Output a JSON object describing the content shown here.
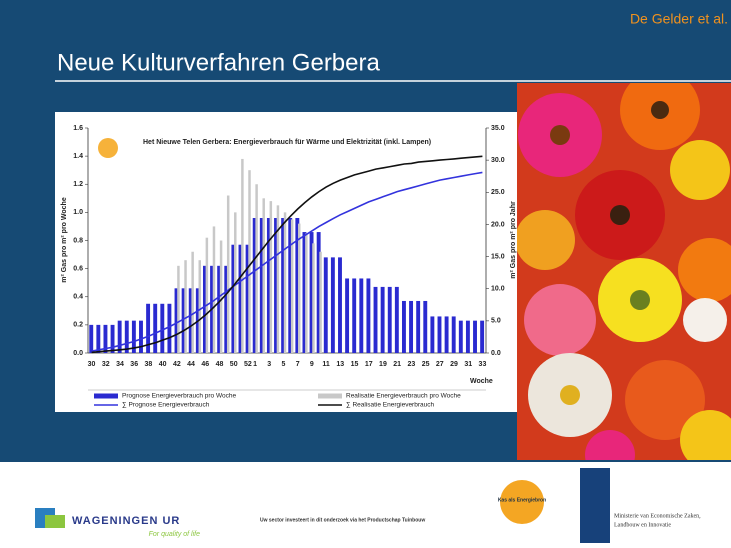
{
  "slide": {
    "title": "Neue Kulturverfahren Gerbera",
    "author": "De Gelder et al."
  },
  "footer": {
    "wageningen": "WAGENINGEN UR",
    "wageningen_tagline": "For quality of life",
    "sector": "Uw sector investeert in dit onderzoek via het Productschap Tuinbouw",
    "kas": "Kas als Energiebron",
    "ministry_line1": "Ministerie van Economische Zaken,",
    "ministry_line2": "Landbouw en Innovatie"
  },
  "chart_data": {
    "type": "bar",
    "title": "Het Nieuwe Telen Gerbera: Energieverbrauch für Wärme und Elektrizität (inkl. Lampen)",
    "x_label": "Woche",
    "y_label": "m² Gas pro m² pro Woche",
    "y2_label": "m² Gas pro m² pro Jahr",
    "categories": [
      "30",
      null,
      "32",
      null,
      "34",
      null,
      "36",
      null,
      "38",
      null,
      "40",
      null,
      "42",
      null,
      "44",
      null,
      "46",
      null,
      "48",
      null,
      "50",
      null,
      "52",
      "1",
      null,
      "3",
      null,
      "5",
      null,
      "7",
      null,
      "9",
      null,
      "11",
      null,
      "13",
      null,
      "15",
      null,
      "17",
      null,
      "19",
      null,
      "21",
      null,
      "23",
      null,
      "25",
      null,
      "27",
      null,
      "29",
      null,
      "31",
      null,
      "33"
    ],
    "ylim": [
      0,
      1.6
    ],
    "yticks": [
      {
        "value": 0,
        "label": "0.0"
      },
      0.2,
      0.4,
      0.6,
      0.8,
      {
        "value": 1,
        "label": "1.0"
      },
      1.2,
      1.4,
      1.6
    ],
    "y2lim": [
      0,
      35
    ],
    "y2ticks": [
      {
        "value": 0,
        "label": "0.0"
      },
      {
        "value": 5,
        "label": "5.0"
      },
      {
        "value": 10,
        "label": "10.0"
      },
      {
        "value": 15,
        "label": "15.0"
      },
      {
        "value": 20,
        "label": "20.0"
      },
      {
        "value": 25,
        "label": "25.0"
      },
      {
        "value": 30,
        "label": "30.0"
      },
      {
        "value": 35,
        "label": "35.0"
      }
    ],
    "series": [
      {
        "name": "Prognose Energieverbrauch pro Woche",
        "type": "bar",
        "color": "#2a2ad0",
        "values": [
          0.2,
          0.2,
          0.2,
          0.2,
          0.23,
          0.23,
          0.23,
          0.23,
          0.35,
          0.35,
          0.35,
          0.35,
          0.46,
          0.46,
          0.46,
          0.46,
          0.62,
          0.62,
          0.62,
          0.62,
          0.77,
          0.77,
          0.77,
          0.96,
          0.96,
          0.96,
          0.96,
          0.96,
          0.96,
          0.96,
          0.86,
          0.86,
          0.86,
          0.68,
          0.68,
          0.68,
          0.53,
          0.53,
          0.53,
          0.53,
          0.47,
          0.47,
          0.47,
          0.47,
          0.37,
          0.37,
          0.37,
          0.37,
          0.26,
          0.26,
          0.26,
          0.26,
          0.23,
          0.23,
          0.23,
          0.23
        ]
      },
      {
        "name": "Realisatie Energieverbrauch pro Woche",
        "type": "bar",
        "color": "#c8c8c8",
        "values": [
          null,
          null,
          null,
          null,
          null,
          null,
          null,
          null,
          null,
          null,
          null,
          null,
          0.62,
          0.66,
          0.72,
          0.66,
          0.82,
          0.9,
          0.8,
          1.12,
          1.0,
          1.38,
          1.3,
          1.2,
          1.1,
          1.08,
          1.05,
          1.0,
          0.95,
          0.92,
          0.85,
          0.78,
          0.72,
          null,
          null,
          null,
          null,
          null,
          null,
          null,
          null,
          null,
          null,
          null,
          null,
          null,
          null,
          null,
          null,
          null,
          null,
          null,
          null,
          null,
          null,
          null
        ]
      },
      {
        "name": "∑ Prognose Energieverbrauch",
        "type": "line",
        "axis": "y2",
        "color": "#3333dd",
        "values": [
          0.3,
          0.5,
          0.7,
          0.9,
          1.2,
          1.5,
          1.8,
          2.2,
          2.6,
          3.1,
          3.6,
          4.1,
          4.7,
          5.3,
          5.9,
          6.6,
          7.3,
          8.0,
          8.8,
          9.6,
          10.4,
          11.2,
          12.0,
          12.8,
          13.6,
          14.4,
          15.2,
          16.0,
          16.8,
          17.6,
          18.3,
          19.0,
          19.7,
          20.3,
          20.9,
          21.5,
          22.0,
          22.5,
          23.0,
          23.5,
          23.9,
          24.3,
          24.7,
          25.1,
          25.4,
          25.7,
          26.0,
          26.3,
          26.6,
          26.9,
          27.1,
          27.3,
          27.5,
          27.7,
          27.9,
          28.1
        ]
      },
      {
        "name": "∑ Realisatie Energieverbrauch",
        "type": "line",
        "axis": "y2",
        "color": "#111111",
        "values": [
          0.1,
          0.2,
          0.3,
          0.4,
          0.5,
          0.6,
          0.8,
          1.0,
          1.3,
          1.6,
          2.0,
          2.4,
          2.9,
          3.5,
          4.2,
          5.0,
          5.9,
          6.9,
          8.0,
          9.2,
          10.5,
          11.9,
          13.3,
          14.7,
          16.1,
          17.5,
          18.8,
          20.1,
          21.3,
          22.4,
          23.4,
          24.3,
          25.1,
          25.8,
          26.4,
          26.9,
          27.3,
          27.7,
          28.0,
          28.3,
          28.6,
          28.8,
          29.0,
          29.2,
          29.4,
          29.5,
          29.7,
          29.8,
          29.9,
          30.0,
          30.1,
          30.2,
          30.3,
          30.4,
          30.5,
          30.6
        ]
      }
    ]
  }
}
